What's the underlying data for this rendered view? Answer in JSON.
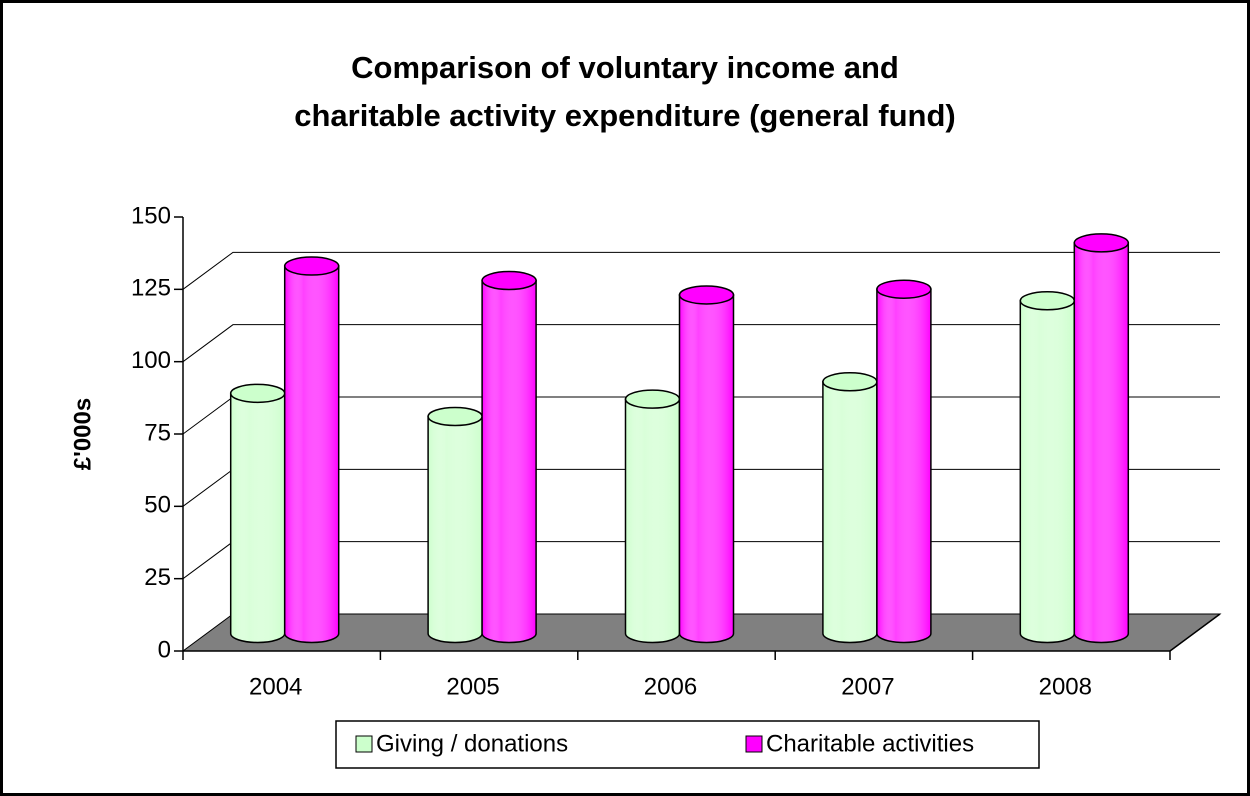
{
  "chart_data": {
    "type": "bar3d",
    "title": [
      "Comparison of voluntary income and",
      "charitable activity expenditure (general fund)"
    ],
    "ylabel": "£'000s",
    "categories": [
      "2004",
      "2005",
      "2006",
      "2007",
      "2008"
    ],
    "series": [
      {
        "name": "Giving / donations",
        "color": "#ccffcc",
        "values": [
          83,
          75,
          81,
          87,
          115
        ]
      },
      {
        "name": "Charitable activities",
        "color": "#ff00ff",
        "values": [
          127,
          122,
          117,
          119,
          135
        ]
      }
    ],
    "ylim": [
      0,
      150
    ],
    "yticks": [
      0,
      25,
      50,
      75,
      100,
      125,
      150
    ],
    "grid": true,
    "legend": "bottom"
  }
}
